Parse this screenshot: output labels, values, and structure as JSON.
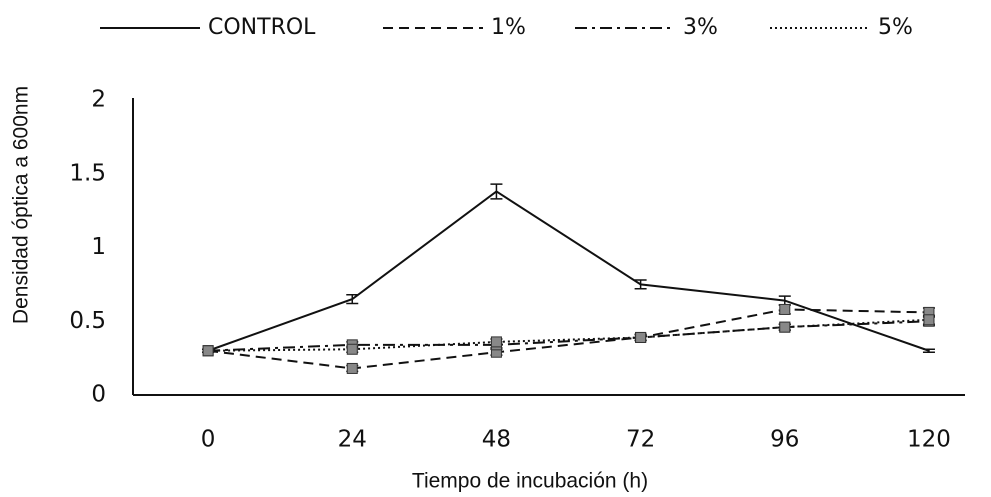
{
  "chart_data": {
    "type": "line",
    "x_label": "Tiempo de incubación (h)",
    "y_label": "Densidad óptica a 600nm",
    "x": [
      0,
      24,
      48,
      72,
      96,
      120
    ],
    "xlim": [
      -12.5,
      126
    ],
    "xticks": [
      0,
      24,
      48,
      72,
      96,
      120
    ],
    "ylim": [
      0,
      2
    ],
    "yticks": [
      0,
      0.5,
      1,
      1.5,
      2
    ],
    "grid": false,
    "legend": "top",
    "series": [
      {
        "name": "CONTROL",
        "color": "#111111",
        "dash": "solid",
        "marker": false,
        "values": [
          0.3,
          0.65,
          1.38,
          0.75,
          0.64,
          0.3
        ],
        "errors": [
          0.01,
          0.03,
          0.05,
          0.03,
          0.03,
          0.01
        ]
      },
      {
        "name": "1%",
        "color": "#111111",
        "dash": "dashed",
        "marker": true,
        "values": [
          0.3,
          0.18,
          0.29,
          0.39,
          0.58,
          0.56
        ],
        "errors": [
          0.01,
          0.02,
          0.02,
          0.02,
          0.03,
          0.03
        ]
      },
      {
        "name": "3%",
        "color": "#111111",
        "dash": "dashdot",
        "marker": true,
        "values": [
          0.3,
          0.34,
          0.34,
          0.39,
          0.46,
          0.5
        ],
        "errors": [
          0.01,
          0.02,
          0.02,
          0.02,
          0.02,
          0.03
        ]
      },
      {
        "name": "5%",
        "color": "#111111",
        "dash": "dotted",
        "marker": true,
        "values": [
          0.3,
          0.31,
          0.36,
          0.39,
          0.46,
          0.51
        ],
        "errors": [
          0.01,
          0.02,
          0.02,
          0.02,
          0.02,
          0.03
        ]
      }
    ]
  }
}
